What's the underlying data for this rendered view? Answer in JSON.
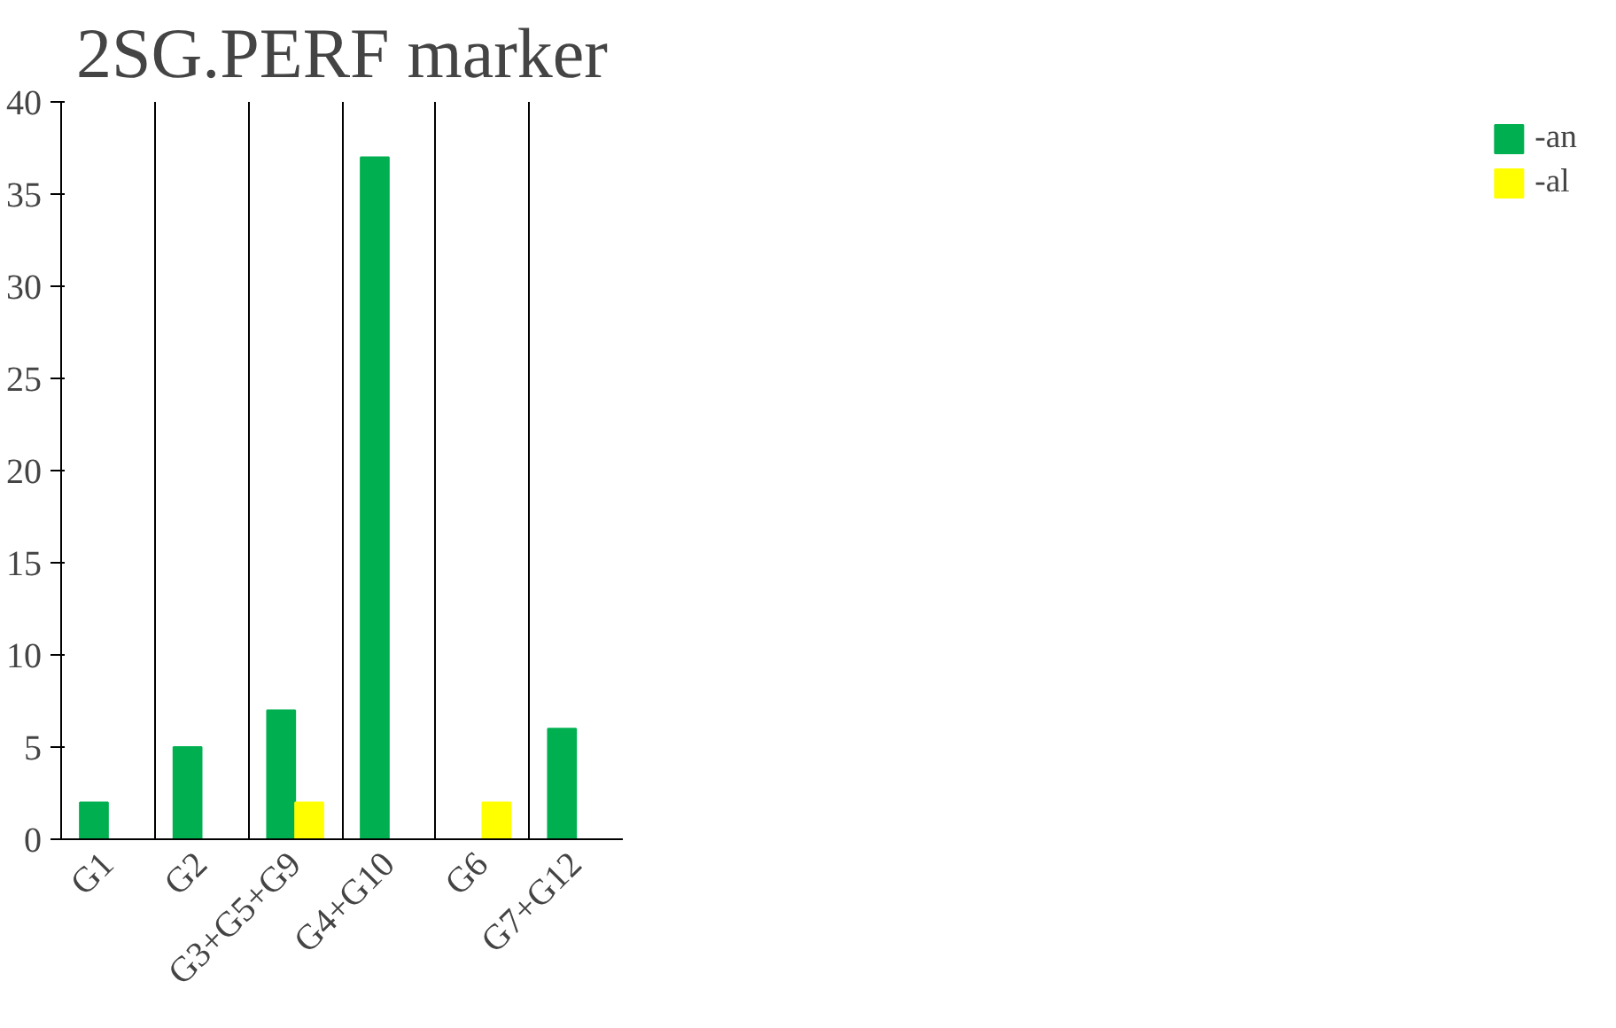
{
  "chart_data": {
    "type": "bar",
    "title": "2SG.PERF marker",
    "categories": [
      "G1",
      "G2",
      "G3+G5+G9",
      "G4+G10",
      "G6",
      "G7+G12"
    ],
    "series": [
      {
        "name": "-an",
        "color": "#00b050",
        "values": [
          2,
          5,
          7,
          37,
          null,
          6
        ]
      },
      {
        "name": "-al",
        "color": "#ffff00",
        "values": [
          null,
          null,
          2,
          null,
          2,
          null
        ]
      }
    ],
    "ylim": [
      0,
      40
    ],
    "yticks": [
      0,
      5,
      10,
      15,
      20,
      25,
      30,
      35,
      40
    ],
    "grid": "x",
    "legend": "right"
  }
}
